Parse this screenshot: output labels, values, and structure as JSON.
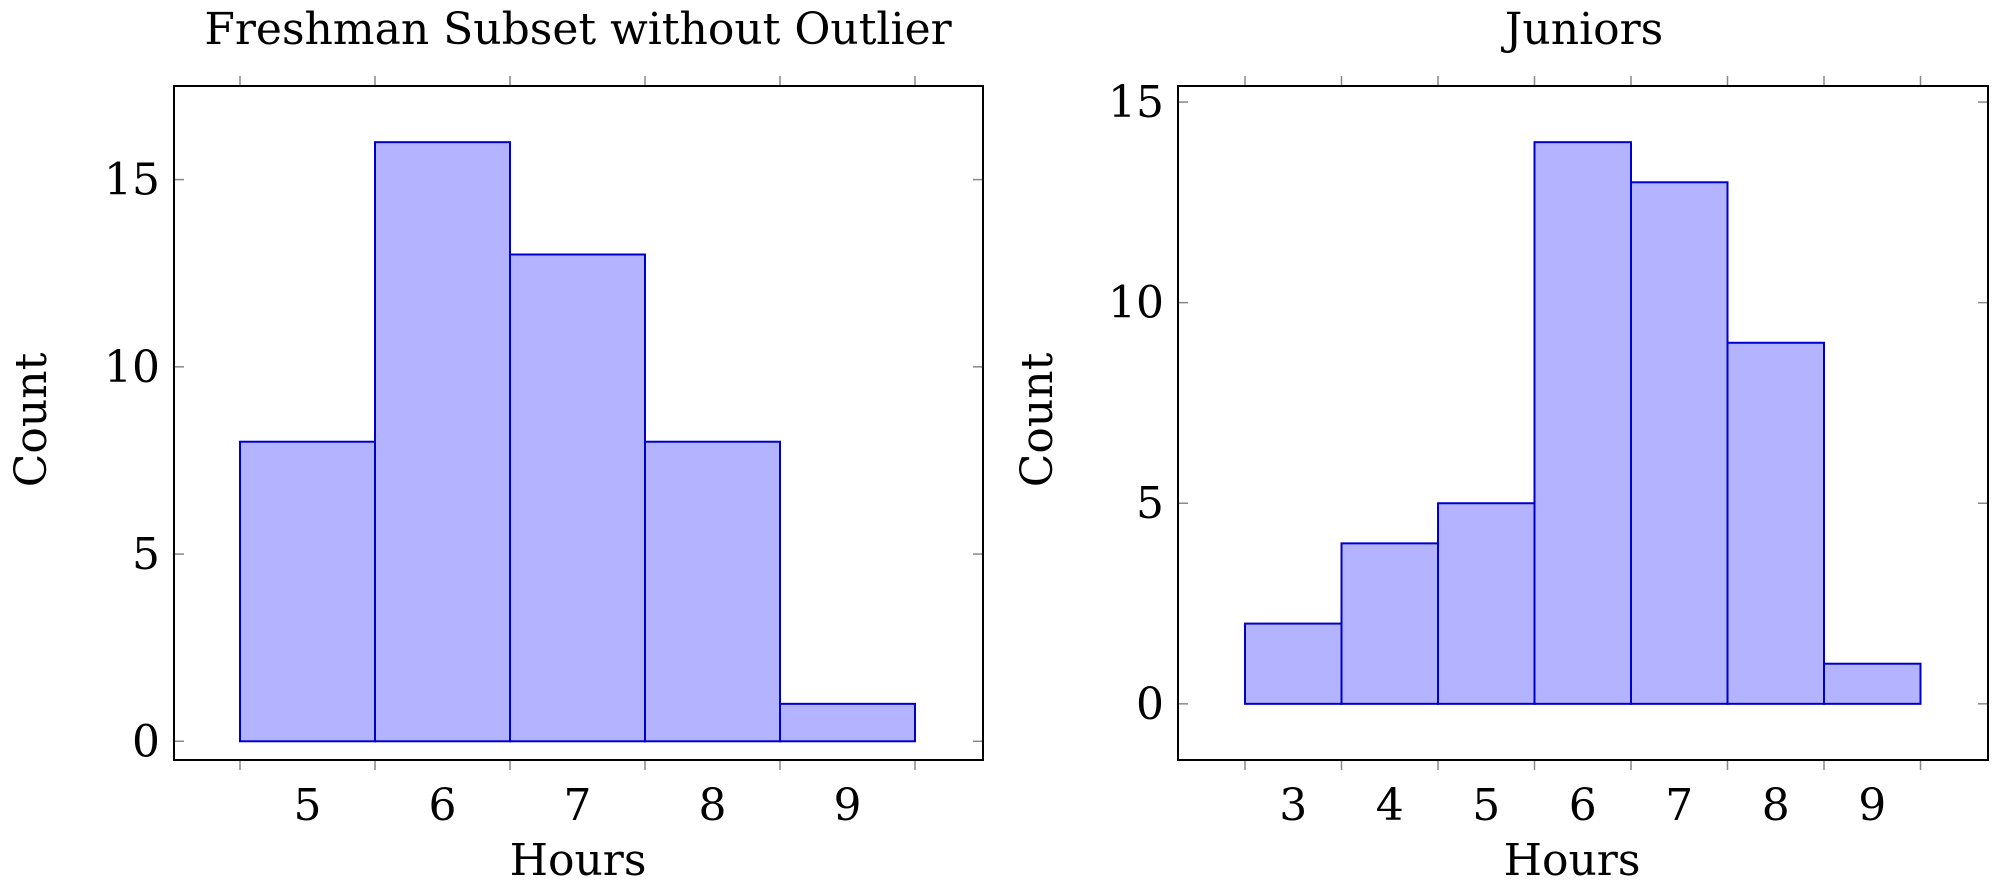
{
  "chart_data": [
    {
      "type": "bar",
      "title": "Freshman Subset without Outlier",
      "xlabel": "Hours",
      "ylabel": "Count",
      "categories": [
        "5",
        "6",
        "7",
        "8",
        "9"
      ],
      "values": [
        8,
        16,
        13,
        8,
        1
      ],
      "yticks": [
        "0",
        "5",
        "10",
        "15"
      ],
      "ylim": [
        -0.5,
        17.5
      ],
      "bar_fill": "#b3b3ff",
      "bar_stroke": "#0000cc",
      "grid": false,
      "legend": "none"
    },
    {
      "type": "bar",
      "title": "Juniors",
      "xlabel": "Hours",
      "ylabel": "Count",
      "categories": [
        "3",
        "4",
        "5",
        "6",
        "7",
        "8",
        "9"
      ],
      "values": [
        2,
        4,
        5,
        14,
        13,
        9,
        1
      ],
      "yticks": [
        "0",
        "5",
        "10",
        "15"
      ],
      "ylim": [
        -1.4,
        15.4
      ],
      "bar_fill": "#b3b3ff",
      "bar_stroke": "#0000cc",
      "grid": false,
      "legend": "none"
    }
  ]
}
